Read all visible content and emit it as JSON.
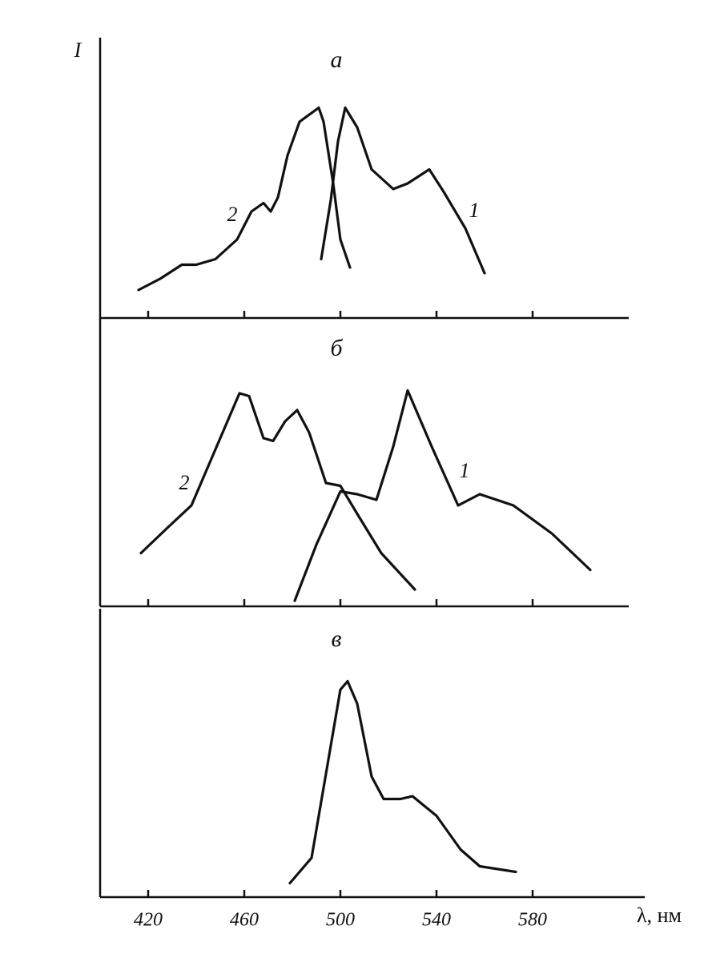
{
  "chart_data": [
    {
      "type": "line",
      "title": "а",
      "y_label": "I",
      "xlim": [
        400,
        620
      ],
      "ylim": [
        0,
        100
      ],
      "xticks": [
        420,
        460,
        500,
        540,
        580
      ],
      "series": [
        {
          "name": "2",
          "color": "#111111",
          "x": [
            416,
            425,
            434,
            440,
            448,
            457,
            463,
            468,
            471,
            474,
            478,
            483,
            491,
            493,
            497,
            500,
            504
          ],
          "values": [
            10,
            14,
            19,
            19,
            21,
            28,
            38,
            41,
            38,
            43,
            58,
            70,
            75,
            70,
            48,
            28,
            18
          ]
        },
        {
          "name": "1",
          "color": "#111111",
          "x": [
            492,
            496,
            499,
            502,
            507,
            513,
            522,
            528,
            537,
            543,
            552,
            560
          ],
          "values": [
            21,
            42,
            63,
            75,
            68,
            53,
            46,
            48,
            53,
            45,
            32,
            16
          ]
        }
      ]
    },
    {
      "type": "line",
      "title": "б",
      "xlim": [
        400,
        620
      ],
      "ylim": [
        0,
        100
      ],
      "xticks": [
        420,
        460,
        500,
        540,
        580
      ],
      "series": [
        {
          "name": "2",
          "color": "#111111",
          "x": [
            417,
            428,
            438,
            448,
            458,
            462,
            468,
            472,
            477,
            482,
            487,
            494,
            500,
            507,
            517,
            531
          ],
          "values": [
            19,
            28,
            36,
            56,
            76,
            75,
            60,
            59,
            66,
            70,
            62,
            44,
            43,
            33,
            19,
            6
          ]
        },
        {
          "name": "1",
          "color": "#111111",
          "x": [
            481,
            490,
            500,
            507,
            515,
            522,
            528,
            538,
            549,
            558,
            572,
            588,
            604
          ],
          "values": [
            2,
            22,
            41,
            40,
            38,
            57,
            77,
            57,
            36,
            40,
            36,
            26,
            13
          ]
        }
      ]
    },
    {
      "type": "line",
      "title": "в",
      "x_label": "λ, нм",
      "xlim": [
        400,
        620
      ],
      "ylim": [
        0,
        100
      ],
      "xticks": [
        420,
        460,
        500,
        540,
        580
      ],
      "color": "#111111",
      "x": [
        479,
        488,
        495,
        500,
        503,
        507,
        513,
        518,
        525,
        530,
        540,
        550,
        558,
        573
      ],
      "values": [
        5,
        14,
        49,
        74,
        77,
        69,
        43,
        35,
        35,
        36,
        29,
        17,
        11,
        9
      ]
    }
  ]
}
